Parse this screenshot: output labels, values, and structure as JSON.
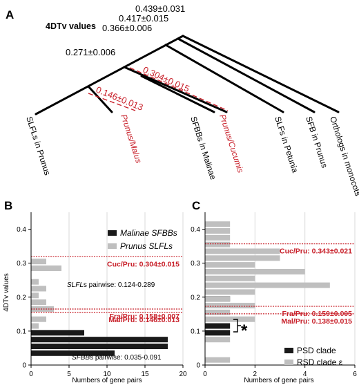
{
  "panels": {
    "a": "A",
    "b": "B",
    "c": "C"
  },
  "tree": {
    "heading": "4DTv values",
    "node_values": [
      "0.439±0.031",
      "0.417±0.015",
      "0.366±0.006",
      "0.271±0.006"
    ],
    "divergence_values": [
      "0.146±0.013",
      "0.304±0.015"
    ],
    "divergence_labels": [
      "Prunus/Malus",
      "Prunus/Cucumis"
    ],
    "leaves": [
      "SLFLs in Prunus",
      "SFBBs in Malinae",
      "SLFs in Petunia",
      "SFB in Prunus",
      "Orthologs in monocots"
    ],
    "colors": {
      "branch": "#000000",
      "divergence": "#c8202a"
    }
  },
  "chart_data": [
    {
      "type": "bar",
      "orientation": "horizontal",
      "panel": "B",
      "xlabel": "Numbers of gene pairs",
      "ylabel": "4DTv values",
      "xlim": [
        0,
        20
      ],
      "ylim": [
        0,
        0.45
      ],
      "xticks": [
        "0",
        "5",
        "10",
        "15",
        "20"
      ],
      "yticks": [
        "0",
        "0.1",
        "0.2",
        "0.3",
        "0.4"
      ],
      "legend": {
        "placement": "top-right",
        "entries": [
          "Malinae SFBBs",
          "Prunus SLFLs"
        ]
      },
      "series": [
        {
          "name": "Malinae SFBBs",
          "color": "#1a1a1a",
          "y": [
            0.035,
            0.055,
            0.075,
            0.095
          ],
          "values": [
            11,
            18,
            18,
            7
          ]
        },
        {
          "name": "Prunus SLFLs",
          "color": "#bfbfbf",
          "y": [
            0.115,
            0.135,
            0.165,
            0.185,
            0.205,
            0.225,
            0.245,
            0.285,
            0.305
          ],
          "values": [
            1,
            2,
            3,
            2,
            1,
            2,
            1,
            4,
            2
          ]
        }
      ],
      "reference_lines": [
        {
          "label": "Cuc/Pru: 0.304±0.015",
          "y": 0.319,
          "color": "#c8202a"
        },
        {
          "label": "Fra/Pru: 0.158±0.007",
          "y": 0.165,
          "color": "#c8202a"
        },
        {
          "label": "Mal/Pru: 0.146±0.013",
          "y": 0.155,
          "color": "#c8202a"
        }
      ],
      "annotations": [
        {
          "prefix": "SLFL",
          "text": "s pairwise: 0.124-0.289"
        },
        {
          "prefix": "SFBB",
          "text": "s pairwise: 0.035-0.091"
        }
      ]
    },
    {
      "type": "bar",
      "orientation": "horizontal",
      "panel": "C",
      "xlabel": "Numbers of gene pairs",
      "xlim": [
        0,
        6
      ],
      "ylim": [
        0,
        0.45
      ],
      "xticks": [
        "0",
        "2",
        "4",
        "6"
      ],
      "yticks": [
        "0",
        "0.1",
        "0.2",
        "0.3",
        "0.4"
      ],
      "legend": {
        "placement": "bottom-right",
        "entries": [
          "PSD clade",
          "RSD clade ε"
        ]
      },
      "series": [
        {
          "name": "PSD clade",
          "color": "#1a1a1a",
          "y": [
            0.095,
            0.115,
            0.195
          ],
          "values": [
            1,
            1,
            1
          ]
        },
        {
          "name": "RSD clade ε",
          "color": "#bfbfbf",
          "y": [
            0.015,
            0.075,
            0.135,
            0.155,
            0.175,
            0.195,
            0.215,
            0.235,
            0.255,
            0.275,
            0.295,
            0.315,
            0.335,
            0.355,
            0.375,
            0.395,
            0.415
          ],
          "values": [
            1,
            1,
            2,
            1,
            2,
            1,
            2,
            5,
            2,
            4,
            2,
            3,
            3,
            1,
            1,
            1,
            1
          ]
        }
      ],
      "reference_lines": [
        {
          "label": "Cuc/Pru: 0.343±0.021",
          "y": 0.357,
          "color": "#c8202a"
        },
        {
          "label": "Fra/Pru: 0.159±0.005",
          "y": 0.173,
          "color": "#c8202a"
        },
        {
          "label": "Mal/Pru: 0.138±0.015",
          "y": 0.151,
          "color": "#c8202a"
        }
      ],
      "annotations": [
        {
          "text": "*"
        }
      ]
    }
  ]
}
